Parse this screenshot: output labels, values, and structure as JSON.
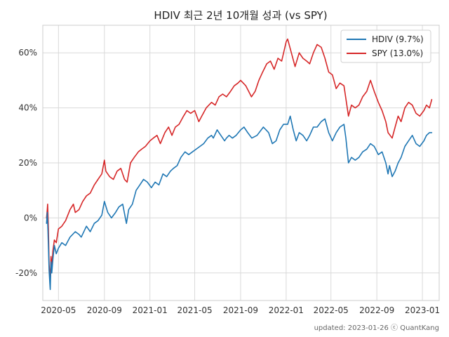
{
  "chart_data": {
    "type": "line",
    "title": "HDIV 최근 2년 10개월 성과 (vs SPY)",
    "xlabel": "",
    "ylabel": "",
    "x_range": [
      "2020-03-20",
      "2023-02-15"
    ],
    "ylim": [
      -30,
      70
    ],
    "y_ticks": [
      -20,
      0,
      20,
      40,
      60
    ],
    "y_tick_labels": [
      "-20%",
      "0%",
      "20%",
      "40%",
      "60%"
    ],
    "x_ticks": [
      "2020-05-01",
      "2020-09-01",
      "2021-01-01",
      "2021-05-01",
      "2021-09-01",
      "2022-01-01",
      "2022-05-01",
      "2022-09-01",
      "2023-01-01"
    ],
    "x_tick_labels": [
      "2020-05",
      "2020-09",
      "2021-01",
      "2021-05",
      "2021-09",
      "2022-01",
      "2022-05",
      "2022-09",
      "2023-01"
    ],
    "grid": true,
    "legend_position": "top-right",
    "series": [
      {
        "name": "HDIV (9.7%)",
        "color": "#1f77b4",
        "points": [
          [
            "2020-03-30",
            -2
          ],
          [
            "2020-04-01",
            2
          ],
          [
            "2020-04-03",
            -5
          ],
          [
            "2020-04-06",
            -19
          ],
          [
            "2020-04-08",
            -24
          ],
          [
            "2020-04-09",
            -26
          ],
          [
            "2020-04-11",
            -16
          ],
          [
            "2020-04-13",
            -20
          ],
          [
            "2020-04-16",
            -15
          ],
          [
            "2020-04-20",
            -10
          ],
          [
            "2020-04-25",
            -13
          ],
          [
            "2020-05-01",
            -11
          ],
          [
            "2020-05-10",
            -9
          ],
          [
            "2020-05-20",
            -10
          ],
          [
            "2020-06-01",
            -7
          ],
          [
            "2020-06-15",
            -5
          ],
          [
            "2020-06-25",
            -6
          ],
          [
            "2020-07-01",
            -7
          ],
          [
            "2020-07-15",
            -3
          ],
          [
            "2020-07-25",
            -5
          ],
          [
            "2020-08-05",
            -2
          ],
          [
            "2020-08-15",
            -1
          ],
          [
            "2020-08-25",
            1
          ],
          [
            "2020-09-01",
            6
          ],
          [
            "2020-09-10",
            2
          ],
          [
            "2020-09-20",
            0
          ],
          [
            "2020-10-01",
            2
          ],
          [
            "2020-10-10",
            4
          ],
          [
            "2020-10-20",
            5
          ],
          [
            "2020-10-30",
            -2
          ],
          [
            "2020-11-05",
            3
          ],
          [
            "2020-11-15",
            5
          ],
          [
            "2020-11-25",
            10
          ],
          [
            "2020-12-05",
            12
          ],
          [
            "2020-12-15",
            14
          ],
          [
            "2020-12-25",
            13
          ],
          [
            "2021-01-05",
            11
          ],
          [
            "2021-01-15",
            13
          ],
          [
            "2021-01-25",
            12
          ],
          [
            "2021-02-05",
            16
          ],
          [
            "2021-02-15",
            15
          ],
          [
            "2021-02-25",
            17
          ],
          [
            "2021-03-05",
            18
          ],
          [
            "2021-03-15",
            19
          ],
          [
            "2021-03-25",
            22
          ],
          [
            "2021-04-05",
            24
          ],
          [
            "2021-04-15",
            23
          ],
          [
            "2021-04-25",
            24
          ],
          [
            "2021-05-05",
            25
          ],
          [
            "2021-05-15",
            26
          ],
          [
            "2021-05-25",
            27
          ],
          [
            "2021-06-05",
            29
          ],
          [
            "2021-06-15",
            30
          ],
          [
            "2021-06-20",
            29
          ],
          [
            "2021-06-30",
            32
          ],
          [
            "2021-07-10",
            30
          ],
          [
            "2021-07-20",
            28
          ],
          [
            "2021-07-25",
            29
          ],
          [
            "2021-08-01",
            30
          ],
          [
            "2021-08-10",
            29
          ],
          [
            "2021-08-20",
            30
          ],
          [
            "2021-09-01",
            32
          ],
          [
            "2021-09-10",
            33
          ],
          [
            "2021-09-20",
            31
          ],
          [
            "2021-10-01",
            29
          ],
          [
            "2021-10-15",
            30
          ],
          [
            "2021-11-01",
            33
          ],
          [
            "2021-11-15",
            31
          ],
          [
            "2021-11-25",
            27
          ],
          [
            "2021-12-05",
            28
          ],
          [
            "2021-12-15",
            32
          ],
          [
            "2021-12-25",
            34
          ],
          [
            "2022-01-05",
            34
          ],
          [
            "2022-01-12",
            37
          ],
          [
            "2022-01-20",
            32
          ],
          [
            "2022-01-28",
            28
          ],
          [
            "2022-02-05",
            31
          ],
          [
            "2022-02-15",
            30
          ],
          [
            "2022-02-25",
            28
          ],
          [
            "2022-03-05",
            30
          ],
          [
            "2022-03-15",
            33
          ],
          [
            "2022-03-25",
            33
          ],
          [
            "2022-04-05",
            35
          ],
          [
            "2022-04-15",
            36
          ],
          [
            "2022-04-25",
            31
          ],
          [
            "2022-05-05",
            28
          ],
          [
            "2022-05-15",
            31
          ],
          [
            "2022-05-25",
            33
          ],
          [
            "2022-06-05",
            34
          ],
          [
            "2022-06-10",
            29
          ],
          [
            "2022-06-17",
            20
          ],
          [
            "2022-06-25",
            22
          ],
          [
            "2022-07-05",
            21
          ],
          [
            "2022-07-15",
            22
          ],
          [
            "2022-07-25",
            24
          ],
          [
            "2022-08-05",
            25
          ],
          [
            "2022-08-15",
            27
          ],
          [
            "2022-08-25",
            26
          ],
          [
            "2022-09-05",
            23
          ],
          [
            "2022-09-15",
            24
          ],
          [
            "2022-09-25",
            20
          ],
          [
            "2022-10-01",
            16
          ],
          [
            "2022-10-05",
            19
          ],
          [
            "2022-10-12",
            15
          ],
          [
            "2022-10-20",
            17
          ],
          [
            "2022-10-28",
            20
          ],
          [
            "2022-11-05",
            22
          ],
          [
            "2022-11-15",
            26
          ],
          [
            "2022-11-25",
            28
          ],
          [
            "2022-12-05",
            30
          ],
          [
            "2022-12-15",
            27
          ],
          [
            "2022-12-25",
            26
          ],
          [
            "2023-01-05",
            28
          ],
          [
            "2023-01-12",
            30
          ],
          [
            "2023-01-20",
            31
          ],
          [
            "2023-01-26",
            31
          ]
        ]
      },
      {
        "name": "SPY (13.0%)",
        "color": "#d62728",
        "points": [
          [
            "2020-03-30",
            0
          ],
          [
            "2020-04-01",
            3
          ],
          [
            "2020-04-02",
            5
          ],
          [
            "2020-04-04",
            -4
          ],
          [
            "2020-04-06",
            -17
          ],
          [
            "2020-04-08",
            -21
          ],
          [
            "2020-04-09",
            -23
          ],
          [
            "2020-04-11",
            -14
          ],
          [
            "2020-04-13",
            -18
          ],
          [
            "2020-04-16",
            -12
          ],
          [
            "2020-04-20",
            -8
          ],
          [
            "2020-04-25",
            -9
          ],
          [
            "2020-05-01",
            -4
          ],
          [
            "2020-05-10",
            -3
          ],
          [
            "2020-05-20",
            -1
          ],
          [
            "2020-06-01",
            3
          ],
          [
            "2020-06-10",
            5
          ],
          [
            "2020-06-15",
            2
          ],
          [
            "2020-06-25",
            3
          ],
          [
            "2020-07-05",
            6
          ],
          [
            "2020-07-15",
            8
          ],
          [
            "2020-07-25",
            9
          ],
          [
            "2020-08-05",
            12
          ],
          [
            "2020-08-15",
            14
          ],
          [
            "2020-08-25",
            16
          ],
          [
            "2020-09-01",
            21
          ],
          [
            "2020-09-05",
            17
          ],
          [
            "2020-09-15",
            15
          ],
          [
            "2020-09-25",
            14
          ],
          [
            "2020-10-05",
            17
          ],
          [
            "2020-10-15",
            18
          ],
          [
            "2020-10-25",
            14
          ],
          [
            "2020-11-01",
            13
          ],
          [
            "2020-11-10",
            20
          ],
          [
            "2020-11-20",
            22
          ],
          [
            "2020-12-01",
            24
          ],
          [
            "2020-12-10",
            25
          ],
          [
            "2020-12-20",
            26
          ],
          [
            "2021-01-01",
            28
          ],
          [
            "2021-01-10",
            29
          ],
          [
            "2021-01-20",
            30
          ],
          [
            "2021-01-29",
            27
          ],
          [
            "2021-02-10",
            31
          ],
          [
            "2021-02-20",
            33
          ],
          [
            "2021-03-01",
            30
          ],
          [
            "2021-03-10",
            33
          ],
          [
            "2021-03-20",
            34
          ],
          [
            "2021-04-01",
            37
          ],
          [
            "2021-04-10",
            39
          ],
          [
            "2021-04-20",
            38
          ],
          [
            "2021-05-01",
            39
          ],
          [
            "2021-05-12",
            35
          ],
          [
            "2021-05-20",
            37
          ],
          [
            "2021-06-01",
            40
          ],
          [
            "2021-06-15",
            42
          ],
          [
            "2021-06-25",
            41
          ],
          [
            "2021-07-05",
            44
          ],
          [
            "2021-07-15",
            45
          ],
          [
            "2021-07-25",
            44
          ],
          [
            "2021-08-05",
            46
          ],
          [
            "2021-08-15",
            48
          ],
          [
            "2021-08-25",
            49
          ],
          [
            "2021-09-01",
            50
          ],
          [
            "2021-09-15",
            48
          ],
          [
            "2021-09-30",
            44
          ],
          [
            "2021-10-10",
            46
          ],
          [
            "2021-10-20",
            50
          ],
          [
            "2021-10-30",
            53
          ],
          [
            "2021-11-10",
            56
          ],
          [
            "2021-11-20",
            57
          ],
          [
            "2021-11-30",
            54
          ],
          [
            "2021-12-10",
            58
          ],
          [
            "2021-12-20",
            57
          ],
          [
            "2022-01-01",
            64
          ],
          [
            "2022-01-05",
            65
          ],
          [
            "2022-01-15",
            60
          ],
          [
            "2022-01-25",
            55
          ],
          [
            "2022-02-05",
            60
          ],
          [
            "2022-02-15",
            58
          ],
          [
            "2022-02-25",
            57
          ],
          [
            "2022-03-05",
            56
          ],
          [
            "2022-03-15",
            60
          ],
          [
            "2022-03-25",
            63
          ],
          [
            "2022-04-05",
            62
          ],
          [
            "2022-04-15",
            58
          ],
          [
            "2022-04-25",
            53
          ],
          [
            "2022-05-05",
            52
          ],
          [
            "2022-05-15",
            47
          ],
          [
            "2022-05-25",
            49
          ],
          [
            "2022-06-05",
            48
          ],
          [
            "2022-06-17",
            37
          ],
          [
            "2022-06-25",
            41
          ],
          [
            "2022-07-05",
            40
          ],
          [
            "2022-07-15",
            41
          ],
          [
            "2022-07-25",
            44
          ],
          [
            "2022-08-05",
            46
          ],
          [
            "2022-08-15",
            50
          ],
          [
            "2022-08-25",
            46
          ],
          [
            "2022-09-05",
            42
          ],
          [
            "2022-09-15",
            39
          ],
          [
            "2022-09-25",
            35
          ],
          [
            "2022-10-01",
            31
          ],
          [
            "2022-10-12",
            29
          ],
          [
            "2022-10-20",
            33
          ],
          [
            "2022-10-28",
            37
          ],
          [
            "2022-11-05",
            35
          ],
          [
            "2022-11-15",
            40
          ],
          [
            "2022-11-25",
            42
          ],
          [
            "2022-12-05",
            41
          ],
          [
            "2022-12-15",
            38
          ],
          [
            "2022-12-25",
            37
          ],
          [
            "2023-01-05",
            39
          ],
          [
            "2023-01-12",
            41
          ],
          [
            "2023-01-20",
            40
          ],
          [
            "2023-01-26",
            43
          ]
        ]
      }
    ]
  },
  "footer": "updated: 2023-01-26 ⓒ QuantKang"
}
